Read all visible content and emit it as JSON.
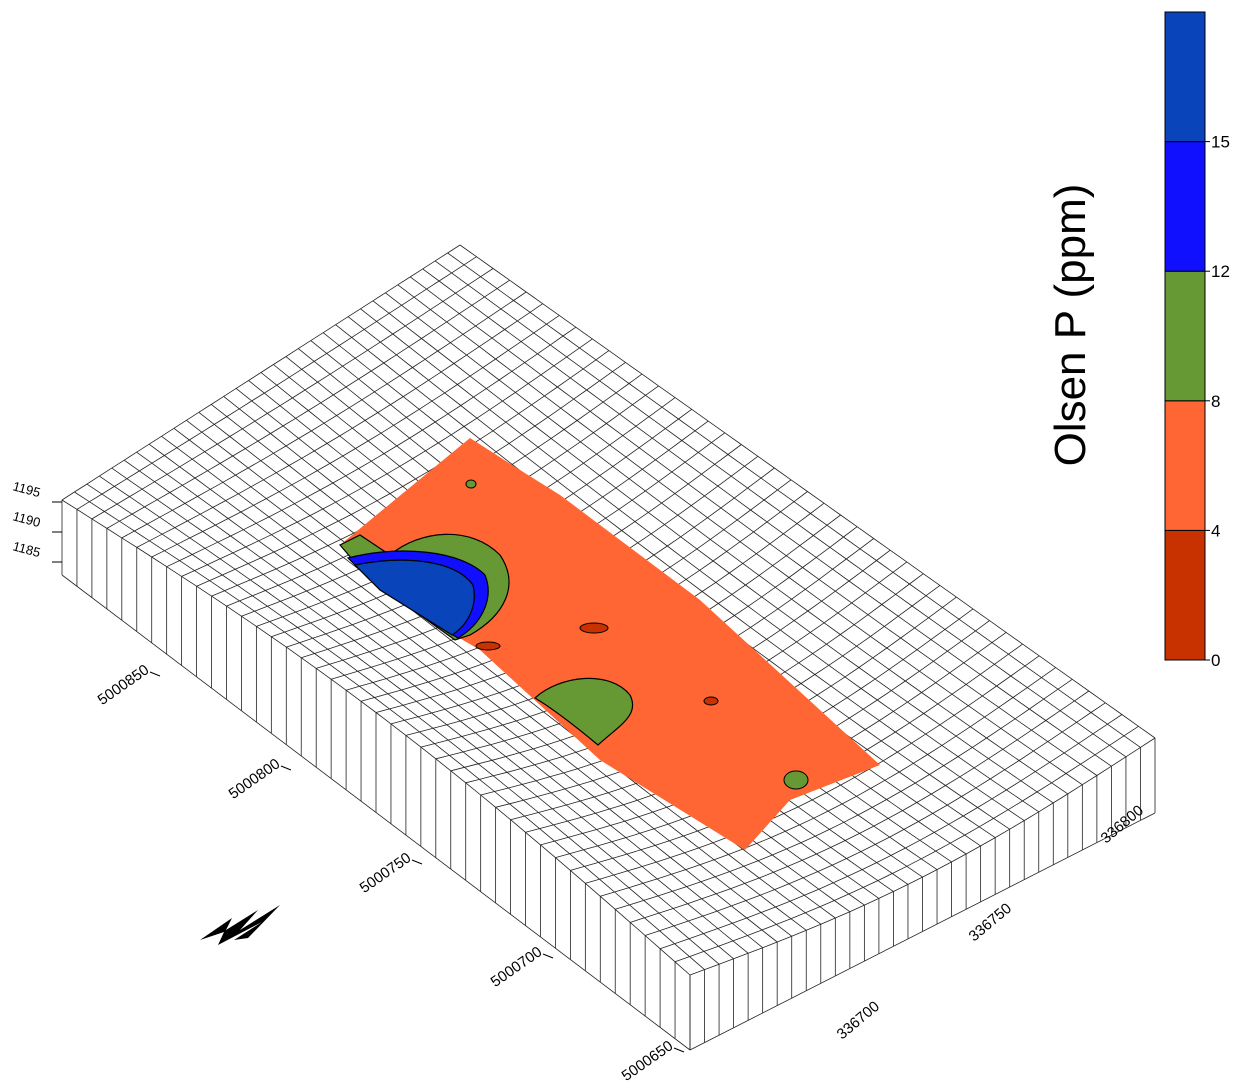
{
  "colorbar": {
    "label": "Olsen P (ppm)",
    "ticks": [
      0,
      4,
      8,
      12,
      15
    ],
    "colors": [
      "#c83200",
      "#ff6633",
      "#669933",
      "#1010ff",
      "#0a44bb"
    ]
  },
  "axes": {
    "northing_ticks": [
      5000850,
      5000800,
      5000750,
      5000700,
      5000650
    ],
    "easting_ticks": [
      336700,
      336750,
      336800
    ],
    "elevation_ticks": [
      1195,
      1190,
      1185
    ]
  }
}
